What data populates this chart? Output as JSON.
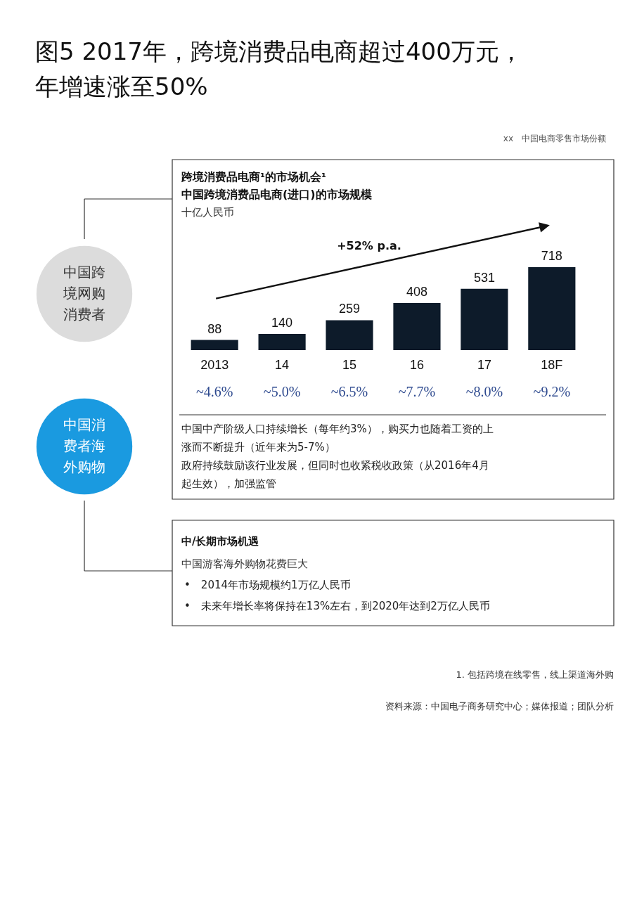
{
  "chart_data": {
    "type": "bar",
    "title": "图5 2017年，跨境消费品电商超过400万元，年增速涨至50%",
    "subtitle": "跨境消费品电商¹的市场机会¹中国跨境消费品电商(进口)的市场规模",
    "ylabel": "十亿人民币",
    "categories": [
      "2013",
      "14",
      "15",
      "16",
      "17",
      "18F"
    ],
    "values": [
      88,
      140,
      259,
      408,
      531,
      718
    ],
    "color": "#0d1b2a",
    "data_labels": true,
    "annotations": [
      "xx　中国电商零售市场份额",
      "中国跨境网购消费者",
      "中国消费者海外购物",
      "+52% p.a.",
      "~4.6%",
      "~5.0%",
      "~6.5%",
      "~7.7%",
      "~8.0%",
      "~9.2%",
      "中国中产阶级人口持续增长（每年约3%），购买力也随着工资的上涨而不断提升（近年来为5-7%）",
      "政府持续鼓励该行业发展，但同时也收紧税收政策（从2016年4月起生效），加强监管",
      "中/长期市场机遇",
      "中国游客海外购物花费巨大",
      "•　2014年市场规模约1万亿人民币",
      "•　未来年增长率将保持在13%左右，到2020年达到2万亿人民币",
      "1. 包括跨境在线零售，线上渠道海外购",
      "资料来源：中国电子商务研究中心；媒体报道；团队分析"
    ]
  }
}
